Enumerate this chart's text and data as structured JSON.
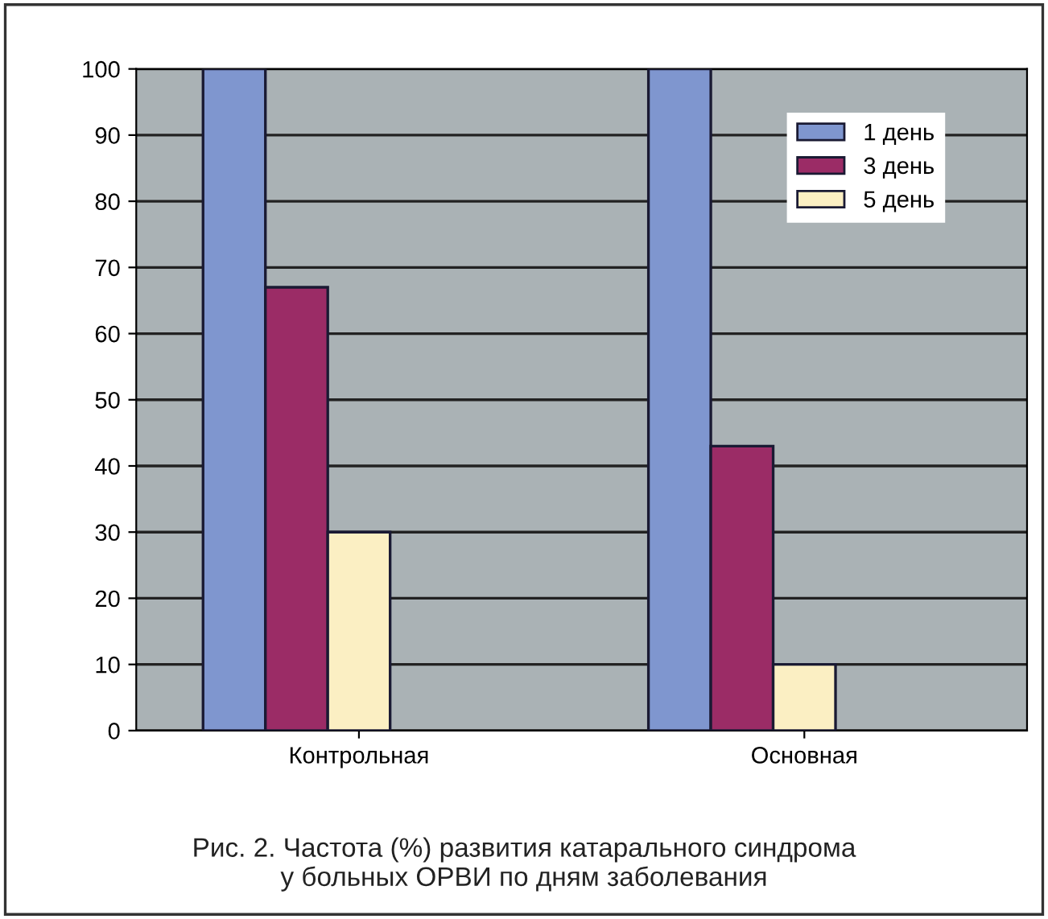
{
  "chart_data": {
    "type": "bar",
    "categories": [
      "Контрольная",
      "Основная"
    ],
    "series": [
      {
        "name": "1 день",
        "color": "#7f96cf",
        "values": [
          100,
          100
        ]
      },
      {
        "name": "3 день",
        "color": "#9b2c66",
        "values": [
          67,
          43
        ]
      },
      {
        "name": "5 день",
        "color": "#fbefc3",
        "values": [
          30,
          10
        ]
      }
    ],
    "ylim": [
      0,
      100
    ],
    "yticks": [
      0,
      10,
      20,
      30,
      40,
      50,
      60,
      70,
      80,
      90,
      100
    ],
    "grid": "y",
    "legend": "top right",
    "annotations": [
      "Рис. 2. Частота (%) развития катарального синдрома\nу больных ОРВИ по дням заболевания"
    ]
  }
}
